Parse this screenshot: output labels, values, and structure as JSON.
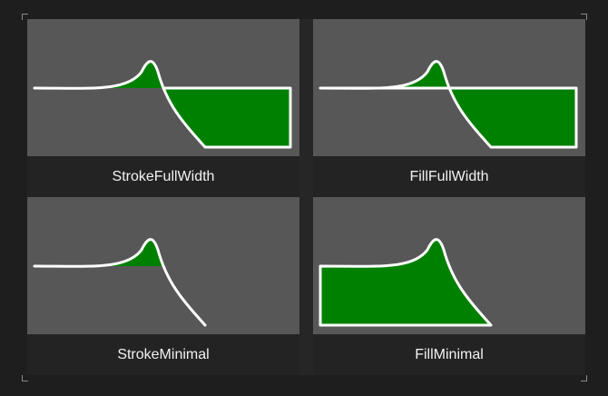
{
  "colors": {
    "background": "#1e1e1e",
    "plot_background": "#575757",
    "caption_background": "#232323",
    "fill": "#008000",
    "stroke": "#ffffff",
    "text": "#f2f2f2"
  },
  "tiles": [
    {
      "label": "StrokeFullWidth",
      "mode": "stroke-full-width"
    },
    {
      "label": "FillFullWidth",
      "mode": "fill-full-width"
    },
    {
      "label": "StrokeMinimal",
      "mode": "stroke-minimal"
    },
    {
      "label": "FillMinimal",
      "mode": "fill-minimal"
    }
  ]
}
